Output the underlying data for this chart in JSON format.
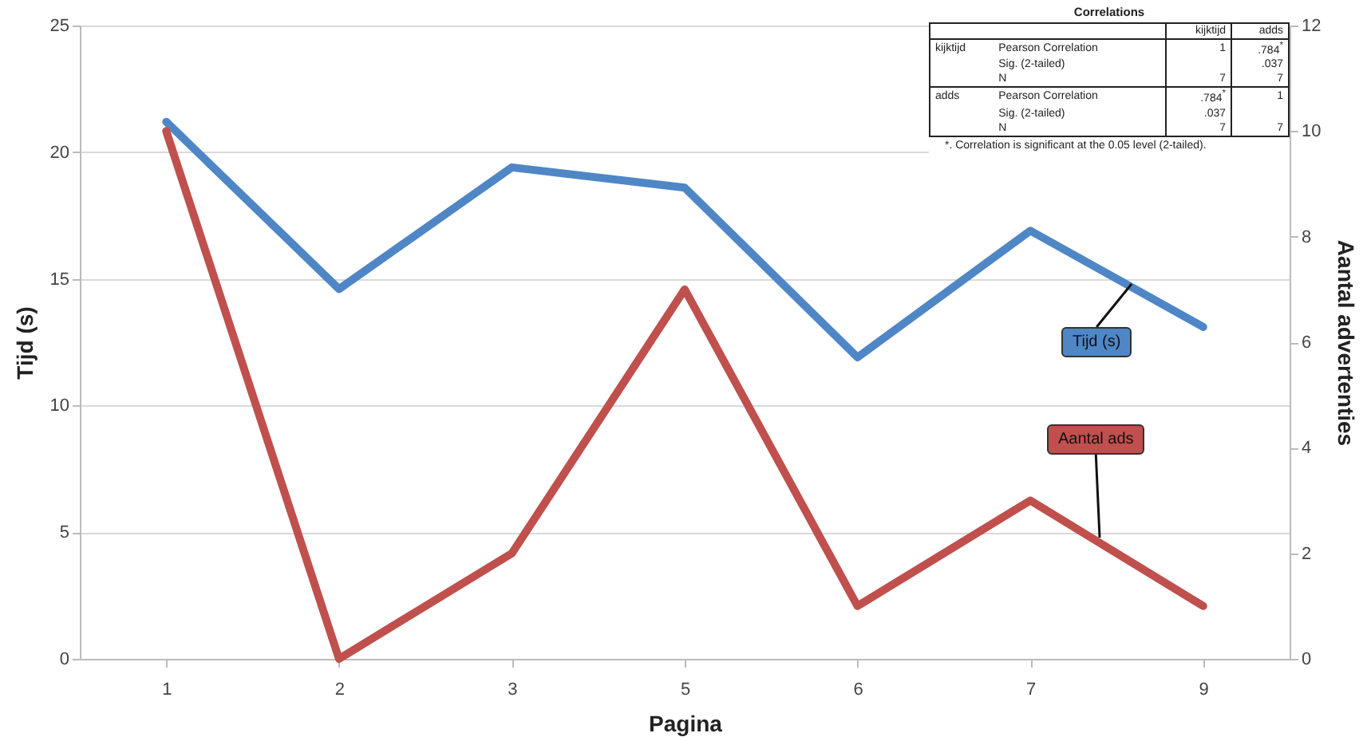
{
  "chart_data": {
    "type": "line",
    "xlabel": "Pagina",
    "ylabel": "Tijd (s)",
    "y2label": "Aantal advertenties",
    "categories": [
      "1",
      "2",
      "3",
      "5",
      "6",
      "7",
      "9"
    ],
    "series": [
      {
        "name": "Tijd (s)",
        "color": "#4f86c6",
        "values": [
          21.2,
          14.6,
          19.4,
          18.6,
          11.9,
          16.9,
          13.1
        ]
      },
      {
        "name": "Aantal ads",
        "color": "#c0504d",
        "axis": "y2",
        "values": [
          10,
          0,
          2,
          7,
          1,
          3,
          1
        ]
      }
    ],
    "ylim": [
      0,
      25
    ],
    "yticks": [
      0,
      5,
      10,
      15,
      20,
      25
    ],
    "y2lim": [
      0,
      12
    ],
    "y2ticks": [
      0,
      2,
      4,
      6,
      8,
      10,
      12
    ],
    "grid": "y",
    "annotations": [
      "Correlations",
      "kijktijd",
      "adds",
      "kijktijd",
      "Pearson Correlation",
      "1",
      ".784$^{*}$",
      "Sig. (2-tailed)",
      ".037",
      "N",
      "7",
      "7",
      "adds",
      "Pearson Correlation",
      ".784$^{*}$",
      "1",
      "Sig. (2-tailed)",
      ".037",
      "N",
      "7",
      "7",
      "*. Correlation is significant at the 0.05 level (2-tailed)."
    ]
  }
}
